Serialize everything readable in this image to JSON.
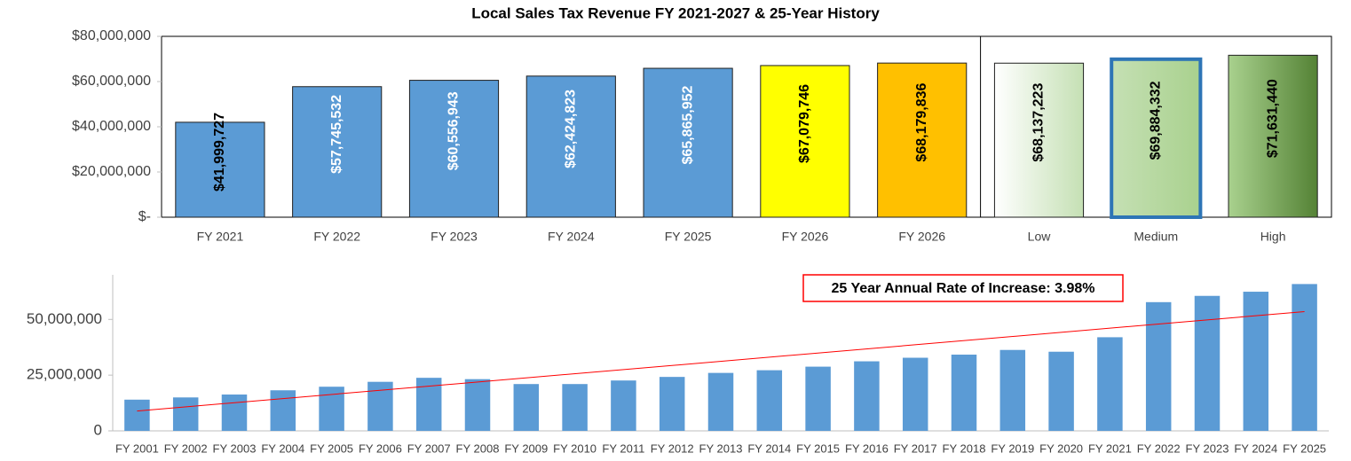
{
  "chart_data": [
    {
      "type": "bar",
      "title": "Local Sales Tax Revenue FY 2021-2027 & 25-Year History",
      "categories": [
        "FY 2021",
        "FY 2022",
        "FY 2023",
        "FY 2024",
        "FY 2025",
        "FY 2026",
        "FY 2026",
        "Low",
        "Medium",
        "High"
      ],
      "values": [
        41999727,
        57745532,
        60556943,
        62424823,
        65865952,
        67079746,
        68179836,
        68137223,
        69884332,
        71631440
      ],
      "value_labels": [
        "$41,999,727",
        "$57,745,532",
        "$60,556,943",
        "$62,424,823",
        "$65,865,952",
        "$67,079,746",
        "$68,179,836",
        "$68,137,223",
        "$69,884,332",
        "$71,631,440"
      ],
      "colors": [
        "#5b9bd5",
        "#5b9bd5",
        "#5b9bd5",
        "#5b9bd5",
        "#5b9bd5",
        "#ffff00",
        "#ffc000",
        [
          "#ffffff",
          "#c5e0b4"
        ],
        [
          "#c5e0b4",
          "#a9d18e"
        ],
        [
          "#a9d18e",
          "#548235"
        ]
      ],
      "edgecolors": [
        "#1f1f1f",
        "#1f1f1f",
        "#1f1f1f",
        "#1f1f1f",
        "#1f1f1f",
        "#1f1f1f",
        "#1f1f1f",
        "#1f1f1f",
        "#2e75b6",
        "#1f1f1f"
      ],
      "label_colors": [
        "#000000",
        "#ffffff",
        "#ffffff",
        "#ffffff",
        "#ffffff",
        "#000000",
        "#000000",
        "#000000",
        "#000000",
        "#000000"
      ],
      "ylim": [
        0,
        80000000
      ],
      "yticks": [
        {
          "value": 0,
          "label": "$-"
        },
        {
          "value": 20000000,
          "label": "$20,000,000"
        },
        {
          "value": 40000000,
          "label": "$40,000,000"
        },
        {
          "value": 60000000,
          "label": "$60,000,000"
        },
        {
          "value": 80000000,
          "label": "$80,000,000"
        }
      ],
      "grid": false
    },
    {
      "type": "bar",
      "categories": [
        "FY 2001",
        "FY 2002",
        "FY 2003",
        "FY 2004",
        "FY 2005",
        "FY 2006",
        "FY 2007",
        "FY 2008",
        "FY 2009",
        "FY 2010",
        "FY 2011",
        "FY 2012",
        "FY 2013",
        "FY 2014",
        "FY 2015",
        "FY 2016",
        "FY 2017",
        "FY 2018",
        "FY 2019",
        "FY 2020",
        "FY 2021",
        "FY 2022",
        "FY 2023",
        "FY 2024",
        "FY 2025"
      ],
      "values": [
        14000000,
        15000000,
        16300000,
        18200000,
        19800000,
        22000000,
        23800000,
        23200000,
        21000000,
        21000000,
        22600000,
        24200000,
        26000000,
        27200000,
        28800000,
        31200000,
        32800000,
        34200000,
        36300000,
        35500000,
        41999727,
        57745532,
        60556943,
        62424823,
        65865952
      ],
      "color": "#5b9bd5",
      "ylim": [
        0,
        70000000
      ],
      "yticks": [
        0,
        {
          "value": 25000000,
          "label": "25,000,000"
        },
        {
          "value": 50000000,
          "label": "50,000,000"
        }
      ],
      "grid": false,
      "trendline": {
        "color": "#ff0000",
        "values": [
          8900000,
          53500000
        ]
      },
      "annotation": "25 Year Annual Rate of Increase: 3.98%"
    }
  ]
}
